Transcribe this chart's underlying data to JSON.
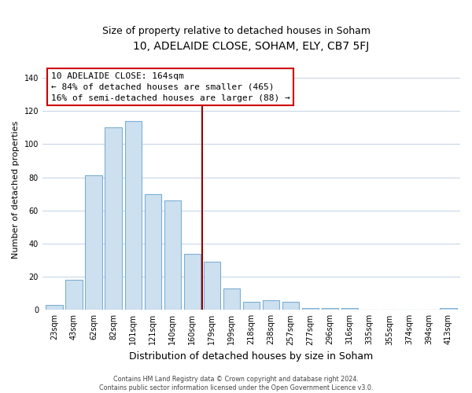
{
  "title": "10, ADELAIDE CLOSE, SOHAM, ELY, CB7 5FJ",
  "subtitle": "Size of property relative to detached houses in Soham",
  "xlabel": "Distribution of detached houses by size in Soham",
  "ylabel": "Number of detached properties",
  "bar_labels": [
    "23sqm",
    "43sqm",
    "62sqm",
    "82sqm",
    "101sqm",
    "121sqm",
    "140sqm",
    "160sqm",
    "179sqm",
    "199sqm",
    "218sqm",
    "238sqm",
    "257sqm",
    "277sqm",
    "296sqm",
    "316sqm",
    "335sqm",
    "355sqm",
    "374sqm",
    "394sqm",
    "413sqm"
  ],
  "bar_values": [
    3,
    18,
    81,
    110,
    114,
    70,
    66,
    34,
    29,
    13,
    5,
    6,
    5,
    1,
    1,
    1,
    0,
    0,
    0,
    0,
    1
  ],
  "bar_color": "#cde0f0",
  "bar_edge_color": "#7bafd4",
  "vline_x": 7.5,
  "vline_color": "#990000",
  "ylim": [
    0,
    145
  ],
  "yticks": [
    0,
    20,
    40,
    60,
    80,
    100,
    120,
    140
  ],
  "annotation_title": "10 ADELAIDE CLOSE: 164sqm",
  "annotation_line1": "← 84% of detached houses are smaller (465)",
  "annotation_line2": "16% of semi-detached houses are larger (88) →",
  "footer_line1": "Contains HM Land Registry data © Crown copyright and database right 2024.",
  "footer_line2": "Contains public sector information licensed under the Open Government Licence v3.0.",
  "background_color": "#ffffff",
  "grid_color": "#c8d8e8",
  "title_fontsize": 10,
  "subtitle_fontsize": 9,
  "ylabel_fontsize": 8,
  "xlabel_fontsize": 9,
  "tick_fontsize": 7,
  "annotation_fontsize": 8,
  "footer_fontsize": 5.8
}
